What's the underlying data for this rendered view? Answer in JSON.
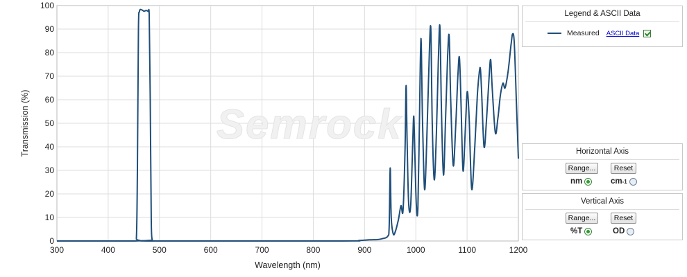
{
  "chart_data": {
    "type": "line",
    "title": "",
    "xlabel": "Wavelength (nm)",
    "ylabel": "Transmission (%)",
    "xlim": [
      300,
      1200
    ],
    "ylim": [
      0,
      100
    ],
    "x_ticks": [
      300,
      400,
      500,
      600,
      700,
      800,
      900,
      1000,
      1100,
      1200
    ],
    "y_ticks": [
      0,
      10,
      20,
      30,
      40,
      50,
      60,
      70,
      80,
      90,
      100
    ],
    "grid": true,
    "watermark": "Semrock",
    "series": [
      {
        "name": "Measured",
        "color": "#1f4e79",
        "points": [
          [
            300,
            0
          ],
          [
            450,
            0
          ],
          [
            455,
            1
          ],
          [
            457,
            30
          ],
          [
            459,
            90
          ],
          [
            461,
            97.5
          ],
          [
            465,
            98.2
          ],
          [
            470,
            97.6
          ],
          [
            474,
            97.9
          ],
          [
            478,
            97.5
          ],
          [
            480,
            96.5
          ],
          [
            482,
            60
          ],
          [
            484,
            8
          ],
          [
            486,
            0.5
          ],
          [
            490,
            0
          ],
          [
            850,
            0
          ],
          [
            890,
            0.2
          ],
          [
            910,
            0.5
          ],
          [
            925,
            0.6
          ],
          [
            935,
            1
          ],
          [
            945,
            2
          ],
          [
            948,
            6
          ],
          [
            950,
            31
          ],
          [
            952,
            10
          ],
          [
            956,
            3
          ],
          [
            960,
            4
          ],
          [
            966,
            9
          ],
          [
            971,
            15
          ],
          [
            975,
            13
          ],
          [
            979,
            39
          ],
          [
            981,
            66
          ],
          [
            983,
            42
          ],
          [
            986,
            16
          ],
          [
            990,
            15
          ],
          [
            994,
            42
          ],
          [
            996,
            53
          ],
          [
            998,
            38
          ],
          [
            1001,
            15
          ],
          [
            1004,
            14
          ],
          [
            1007,
            50
          ],
          [
            1010,
            86
          ],
          [
            1013,
            52
          ],
          [
            1017,
            22
          ],
          [
            1021,
            40
          ],
          [
            1025,
            70
          ],
          [
            1029,
            91
          ],
          [
            1032,
            50
          ],
          [
            1036,
            26
          ],
          [
            1040,
            45
          ],
          [
            1044,
            77
          ],
          [
            1047,
            91
          ],
          [
            1050,
            55
          ],
          [
            1054,
            28
          ],
          [
            1058,
            52
          ],
          [
            1062,
            78
          ],
          [
            1065,
            87
          ],
          [
            1068,
            60
          ],
          [
            1073,
            32
          ],
          [
            1078,
            50
          ],
          [
            1082,
            70
          ],
          [
            1085,
            78
          ],
          [
            1088,
            60
          ],
          [
            1092,
            30
          ],
          [
            1096,
            45
          ],
          [
            1099,
            60
          ],
          [
            1101,
            63
          ],
          [
            1104,
            52
          ],
          [
            1109,
            22
          ],
          [
            1115,
            40
          ],
          [
            1120,
            62
          ],
          [
            1124,
            72
          ],
          [
            1126,
            73
          ],
          [
            1128,
            65
          ],
          [
            1133,
            40
          ],
          [
            1138,
            52
          ],
          [
            1143,
            70
          ],
          [
            1146,
            77
          ],
          [
            1149,
            65
          ],
          [
            1155,
            46
          ],
          [
            1160,
            52
          ],
          [
            1165,
            62
          ],
          [
            1170,
            67
          ],
          [
            1174,
            65
          ],
          [
            1180,
            72
          ],
          [
            1186,
            84
          ],
          [
            1189,
            88
          ],
          [
            1192,
            84
          ],
          [
            1196,
            60
          ],
          [
            1200,
            35
          ]
        ]
      }
    ]
  },
  "legend_panel": {
    "title": "Legend & ASCII Data",
    "entry_label": "Measured",
    "ascii_link": "ASCII Data",
    "ascii_checked": true
  },
  "horizontal_axis_panel": {
    "title": "Horizontal Axis",
    "range_button": "Range...",
    "reset_button": "Reset",
    "option_nm": "nm",
    "option_cm": "cm",
    "option_cm_sup": "-1",
    "selected": "nm"
  },
  "vertical_axis_panel": {
    "title": "Vertical  Axis",
    "range_button": "Range...",
    "reset_button": "Reset",
    "option_t": "%T",
    "option_od": "OD",
    "selected": "%T"
  }
}
